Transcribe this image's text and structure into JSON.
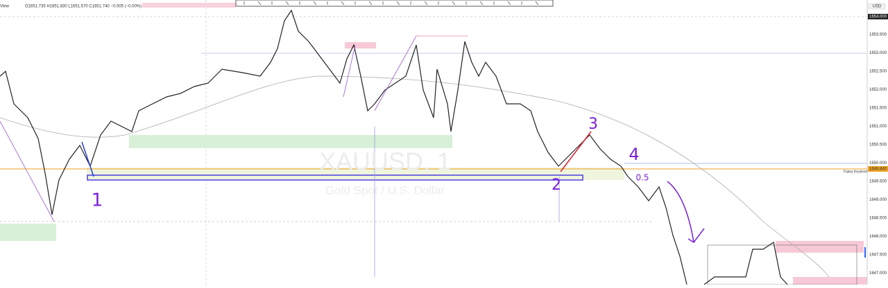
{
  "header": {
    "menu": "View",
    "ohlc": "O1651.735 H1651.830 L1651.570 C1651.740 −0.005 (−0.00%)",
    "currency": "USD"
  },
  "watermark": {
    "symbol": "XAUUSD, 1",
    "description": "Gold Spot / U.S. Dollar"
  },
  "price_axis": {
    "current": "1654.000",
    "labels": [
      "1653.500",
      "1653.000",
      "1652.500",
      "1652.000",
      "1651.500",
      "1651.000",
      "1650.500",
      "1650.000",
      "1649.500",
      "1649.000",
      "1648.500",
      "1648.000",
      "1647.500",
      "1647.000"
    ],
    "marker": "1649.840"
  },
  "level_label": "Fakey Keylevel",
  "annotations": [
    "1",
    "2",
    "3",
    "4",
    "0.5"
  ]
}
